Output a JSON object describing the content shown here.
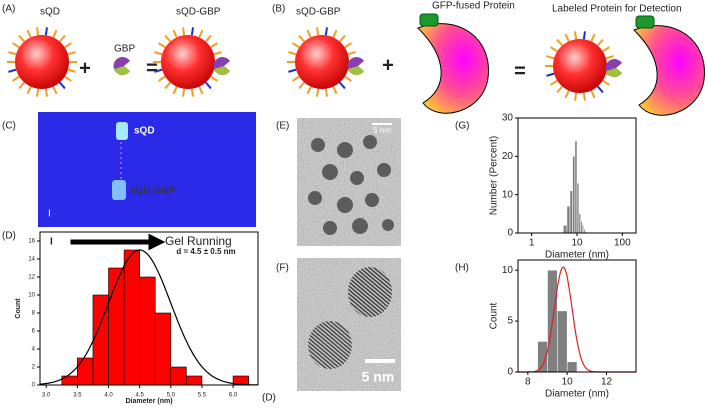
{
  "panel_labels": [
    "(A)",
    "(B)",
    "(C)",
    "(D)",
    "(E)",
    "(F)",
    "(G)",
    "(H)",
    "(D)"
  ],
  "scheme_a": {
    "sqd": "sQD",
    "gbp": "GBP",
    "product": "sQD-GBP",
    "plus": "+",
    "equals": "="
  },
  "scheme_b": {
    "sqd_gbp": "sQD-GBP",
    "protein": "GFP-fused Protein",
    "plus": "+",
    "equals": "=",
    "product": "Labeled Protein for Detection"
  },
  "gel": {
    "band_top": "sQD",
    "band_bottom": "sQD-GBP",
    "well": "I",
    "direction": "Gel Running"
  },
  "tem": {
    "scale_e": "5 nm",
    "scale_f": "5 nm"
  },
  "chart_data": [
    {
      "type": "histogram",
      "xlabel": "Diameter (nm)",
      "ylabel": "Count",
      "annotation": "d = 4.5 ± 0.5 nm",
      "bins": [
        3.25,
        3.5,
        3.75,
        4.0,
        4.25,
        4.5,
        4.75,
        5.0,
        5.25,
        5.5,
        5.75,
        6.0,
        6.25
      ],
      "values": [
        1,
        3,
        10,
        13,
        15,
        12,
        8,
        2,
        1,
        0,
        0,
        1
      ],
      "color": "#ff0000",
      "xlim": [
        2.9,
        6.4
      ],
      "xticks": [
        {
          "value": 3,
          "label": "3.0"
        },
        3.5,
        {
          "value": 4,
          "label": "4.0"
        },
        4.5,
        {
          "value": 5,
          "label": "5.0"
        },
        5.5,
        {
          "value": 6,
          "label": "6.0"
        }
      ],
      "ylim": [
        0,
        17
      ],
      "yticks": [
        0,
        2,
        4,
        6,
        8,
        10,
        12,
        14,
        16
      ],
      "fit": {
        "mean": 4.5,
        "sd": 0.5,
        "peak": 15,
        "color": "#000000"
      }
    },
    {
      "type": "histogram",
      "xlabel": "Diameter (nm)",
      "ylabel": "Number (Percent)",
      "log_x": true,
      "bins": [
        5,
        6,
        7,
        8,
        9,
        10,
        11,
        12,
        13,
        14,
        15,
        16
      ],
      "values": [
        2,
        7,
        11,
        20,
        24,
        13,
        5,
        3,
        2,
        1,
        0.5
      ],
      "color": "#808080",
      "xlim": [
        0.5,
        200
      ],
      "xticks": [
        1,
        10,
        100
      ],
      "ylim": [
        0,
        30
      ],
      "yticks": [
        0,
        10,
        20,
        30
      ]
    },
    {
      "type": "histogram",
      "xlabel": "Diameter (nm)",
      "ylabel": "Count",
      "bins": [
        8.5,
        9.0,
        9.5,
        10.0,
        10.5,
        11.0
      ],
      "values": [
        3,
        10,
        6,
        1,
        0
      ],
      "color": "#808080",
      "xlim": [
        7.5,
        13.5
      ],
      "xticks": [
        8,
        10,
        12
      ],
      "ylim": [
        0,
        11
      ],
      "yticks": [
        0,
        5,
        10
      ],
      "fit": {
        "mean": 9.8,
        "sd": 0.45,
        "peak": 10.3,
        "color": "#e02020"
      }
    }
  ]
}
